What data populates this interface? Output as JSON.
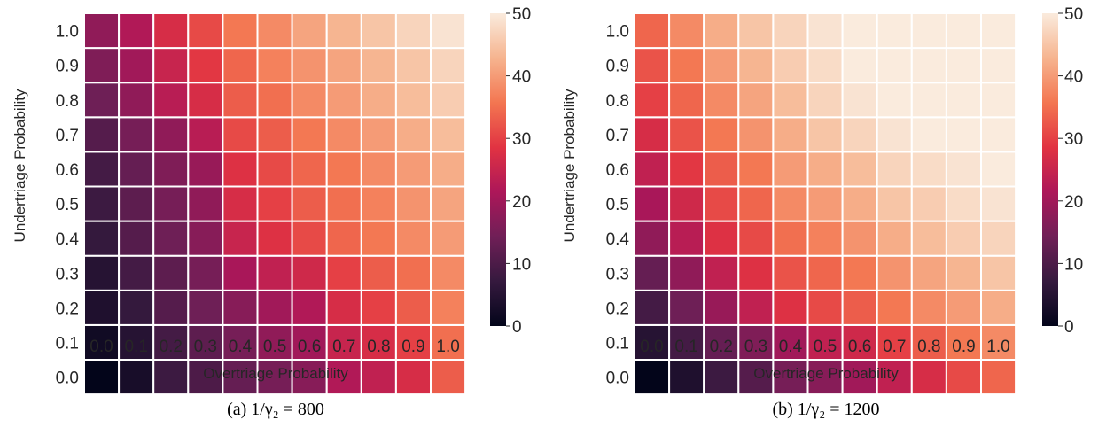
{
  "chart_data": [
    {
      "type": "heatmap",
      "caption": "(a) 1/γ₂ = 800",
      "xlabel": "Overtriage Probability",
      "ylabel": "Undertriage Probability",
      "x_categories": [
        "0.0",
        "0.1",
        "0.2",
        "0.3",
        "0.4",
        "0.5",
        "0.6",
        "0.7",
        "0.8",
        "0.9",
        "1.0"
      ],
      "y_categories": [
        "0.0",
        "0.1",
        "0.2",
        "0.3",
        "0.4",
        "0.5",
        "0.6",
        "0.7",
        "0.8",
        "0.9",
        "1.0"
      ],
      "colorbar": {
        "range": [
          0,
          50
        ],
        "ticks": [
          "0",
          "10",
          "20",
          "30",
          "40",
          "50"
        ]
      },
      "colormap": [
        "#03051a",
        "#35193e",
        "#701f57",
        "#ad1759",
        "#e13342",
        "#f37651",
        "#f6b48f",
        "#faebdd"
      ],
      "values_note": "rows listed from undertriage 0.0 (bottom) to 1.0 (top); columns overtriage 0.0 to 1.0",
      "values": [
        [
          0,
          3,
          8,
          10,
          13,
          15,
          17,
          22,
          24,
          27,
          33
        ],
        [
          2,
          5,
          9,
          12,
          15,
          18,
          20,
          25,
          27,
          30,
          35
        ],
        [
          4,
          7,
          11,
          14,
          17,
          20,
          22,
          27,
          30,
          33,
          37
        ],
        [
          5,
          9,
          12,
          15,
          21,
          24,
          26,
          30,
          33,
          35,
          38
        ],
        [
          7,
          11,
          14,
          17,
          25,
          28,
          31,
          34,
          36,
          38,
          40
        ],
        [
          8,
          12,
          15,
          18,
          27,
          30,
          33,
          35,
          37,
          39,
          41
        ],
        [
          9,
          13,
          16,
          19,
          28,
          31,
          34,
          36,
          38,
          40,
          42
        ],
        [
          11,
          15,
          18,
          23,
          31,
          33,
          36,
          38,
          40,
          42,
          44
        ],
        [
          14,
          18,
          23,
          27,
          33,
          35,
          38,
          40,
          42,
          44,
          46
        ],
        [
          16,
          20,
          25,
          29,
          34,
          37,
          39,
          41,
          43,
          45,
          47
        ],
        [
          18,
          22,
          27,
          31,
          36,
          38,
          41,
          43,
          45,
          47,
          49
        ]
      ]
    },
    {
      "type": "heatmap",
      "caption": "(b) 1/γ₂ = 1200",
      "xlabel": "Overtriage Probability",
      "ylabel": "Undertriage Probability",
      "x_categories": [
        "0.0",
        "0.1",
        "0.2",
        "0.3",
        "0.4",
        "0.5",
        "0.6",
        "0.7",
        "0.8",
        "0.9",
        "1.0"
      ],
      "y_categories": [
        "0.0",
        "0.1",
        "0.2",
        "0.3",
        "0.4",
        "0.5",
        "0.6",
        "0.7",
        "0.8",
        "0.9",
        "1.0"
      ],
      "colorbar": {
        "range": [
          0,
          50
        ],
        "ticks": [
          "0",
          "10",
          "20",
          "30",
          "40",
          "50"
        ]
      },
      "colormap": [
        "#03051a",
        "#35193e",
        "#701f57",
        "#ad1759",
        "#e13342",
        "#f37651",
        "#f6b48f",
        "#faebdd"
      ],
      "values_note": "rows listed from undertriage 0.0 (bottom) to 1.0 (top); columns overtriage 0.0 to 1.0",
      "values": [
        [
          0,
          4,
          8,
          11,
          15,
          17,
          20,
          24,
          27,
          31,
          34
        ],
        [
          5,
          9,
          13,
          16,
          20,
          24,
          26,
          30,
          33,
          36,
          38
        ],
        [
          9,
          14,
          19,
          24,
          28,
          31,
          33,
          36,
          38,
          40,
          42
        ],
        [
          13,
          18,
          24,
          28,
          32,
          34,
          36,
          39,
          41,
          43,
          45
        ],
        [
          18,
          23,
          28,
          31,
          35,
          37,
          39,
          42,
          44,
          46,
          47
        ],
        [
          21,
          26,
          31,
          34,
          38,
          40,
          42,
          45,
          46,
          48,
          49
        ],
        [
          24,
          29,
          33,
          36,
          40,
          42,
          44,
          47,
          48,
          49,
          50
        ],
        [
          27,
          32,
          36,
          39,
          42,
          45,
          47,
          49,
          50,
          50,
          50
        ],
        [
          30,
          34,
          38,
          41,
          44,
          47,
          49,
          50,
          50,
          50,
          50
        ],
        [
          32,
          36,
          40,
          43,
          46,
          48,
          50,
          50,
          50,
          50,
          50
        ],
        [
          34,
          38,
          42,
          45,
          47,
          49,
          50,
          50,
          50,
          50,
          50
        ]
      ]
    }
  ]
}
